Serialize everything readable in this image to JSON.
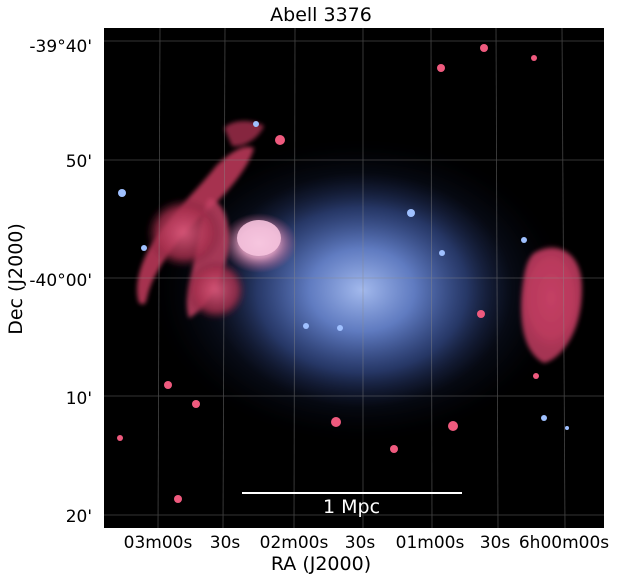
{
  "title": "Abell 3376",
  "axes": {
    "xlabel": "RA (J2000)",
    "ylabel": "Dec (J2000)",
    "xticks": [
      "03m00s",
      "30s",
      "02m00s",
      "30s",
      "01m00s",
      "30s",
      "6h00m00s"
    ],
    "yticks": [
      "-39°40'",
      "50'",
      "-40°00'",
      "10'",
      "20'"
    ]
  },
  "scalebar": {
    "label": "1 Mpc"
  },
  "colors": {
    "background": "#000000",
    "xray_emission": "#5a7fd9",
    "radio_emission": "#d23a5c",
    "grid": "#888888",
    "scalebar": "#ffffff"
  }
}
